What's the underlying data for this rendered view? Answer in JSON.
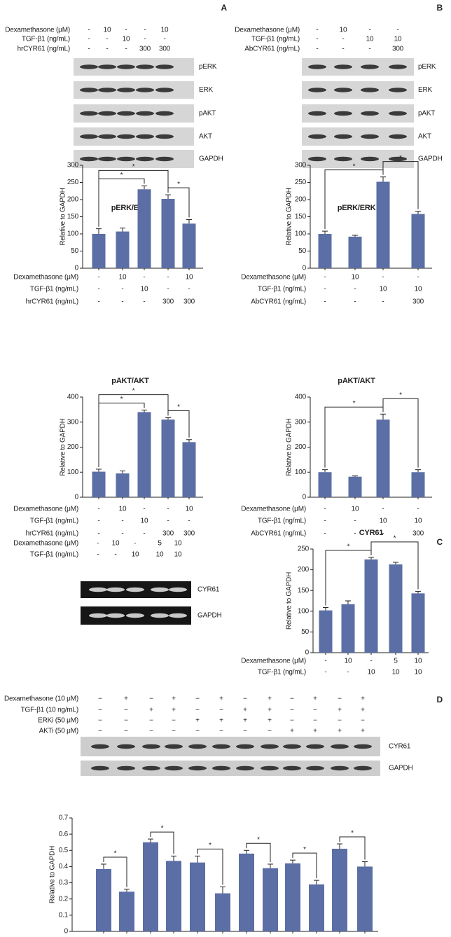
{
  "panels": [
    "A",
    "B",
    "C",
    "D"
  ],
  "blots": [
    {
      "treatments": [
        {
          "label": "Dexamethasone (μM)",
          "cells": [
            "-",
            "10",
            "-",
            "-",
            "10"
          ]
        },
        {
          "label": "TGF-β1 (ng/mL)",
          "cells": [
            "-",
            "-",
            "10",
            "-",
            "-"
          ]
        },
        {
          "label": "hrCYR61 (ng/mL)",
          "cells": [
            "-",
            "-",
            "-",
            "300",
            "300"
          ]
        }
      ],
      "bands": [
        "pERK",
        "ERK",
        "pAKT",
        "AKT",
        "GAPDH"
      ]
    },
    {
      "treatments": [
        {
          "label": "Dexamethasone (μM)",
          "cells": [
            "-",
            "10",
            "-",
            "-"
          ]
        },
        {
          "label": "TGF-β1 (ng/mL)",
          "cells": [
            "-",
            "-",
            "10",
            "10"
          ]
        },
        {
          "label": "AbCYR61 (ng/mL)",
          "cells": [
            "-",
            "-",
            "-",
            "300"
          ]
        }
      ],
      "bands": [
        "pERK",
        "ERK",
        "pAKT",
        "AKT",
        "GAPDH"
      ]
    },
    {
      "treatments": [
        {
          "label": "Dexamethasone (μM)",
          "cells": [
            "-",
            "10",
            "-",
            "5",
            "10"
          ]
        },
        {
          "label": "TGF-β1 (ng/mL)",
          "cells": [
            "-",
            "-",
            "10",
            "10",
            "10"
          ]
        }
      ],
      "bands": [
        "CYR61",
        "GAPDH"
      ]
    },
    {
      "treatments": [
        {
          "label": "Dexamethasone (10 μM)",
          "cells": [
            "−",
            "+",
            "−",
            "+",
            "−",
            "+",
            "−",
            "+",
            "−",
            "+",
            "−",
            "+"
          ]
        },
        {
          "label": "TGF-β1 (10 ng/mL)",
          "cells": [
            "−",
            "−",
            "+",
            "+",
            "−",
            "−",
            "+",
            "+",
            "−",
            "−",
            "+",
            "+"
          ]
        },
        {
          "label": "ERKi (50 μM)",
          "cells": [
            "−",
            "−",
            "−",
            "−",
            "+",
            "+",
            "+",
            "+",
            "−",
            "−",
            "−",
            "−"
          ]
        },
        {
          "label": "AKTi (50 μM)",
          "cells": [
            "−",
            "−",
            "−",
            "−",
            "−",
            "−",
            "−",
            "−",
            "+",
            "+",
            "+",
            "+"
          ]
        }
      ],
      "bands": [
        "CYR61",
        "GAPDH"
      ]
    }
  ],
  "chart_data": [
    {
      "type": "bar",
      "title": "pERK/ERK",
      "y_label": "Relative to GAPDH",
      "color": "#5b6ea5",
      "values": [
        100,
        107,
        230,
        202,
        130
      ],
      "errors": [
        15,
        10,
        10,
        12,
        12
      ],
      "ylim": [
        0,
        300
      ],
      "yticks": [
        0,
        50,
        100,
        150,
        200,
        250,
        300
      ],
      "significance": [
        {
          "from": 0,
          "to": 2,
          "label": "*"
        },
        {
          "from": 0,
          "to": 3,
          "label": "*"
        },
        {
          "from": 3,
          "to": 4,
          "label": "*"
        }
      ],
      "treatments": [
        {
          "label": "Dexamethasone (μM)",
          "cells": [
            "-",
            "10",
            "-",
            "-",
            "10"
          ]
        },
        {
          "label": "TGF-β1 (ng/mL)",
          "cells": [
            "-",
            "-",
            "10",
            "-",
            "-"
          ]
        },
        {
          "label": "hrCYR61 (ng/mL)",
          "cells": [
            "-",
            "-",
            "-",
            "300",
            "300"
          ]
        }
      ]
    },
    {
      "type": "bar",
      "title": "pERK/ERK",
      "y_label": "Relative to GAPDH",
      "color": "#5b6ea5",
      "values": [
        100,
        92,
        252,
        158
      ],
      "errors": [
        8,
        4,
        14,
        8
      ],
      "ylim": [
        0,
        300
      ],
      "yticks": [
        0,
        50,
        100,
        150,
        200,
        250,
        300
      ],
      "significance": [
        {
          "from": 0,
          "to": 2,
          "label": "*"
        },
        {
          "from": 2,
          "to": 3,
          "label": "*"
        }
      ],
      "treatments": [
        {
          "label": "Dexamethasone (μM)",
          "cells": [
            "-",
            "10",
            "-",
            "-"
          ]
        },
        {
          "label": "TGF-β1 (ng/mL)",
          "cells": [
            "-",
            "-",
            "10",
            "10"
          ]
        },
        {
          "label": "AbCYR61 (ng/mL)",
          "cells": [
            "-",
            "-",
            "-",
            "300"
          ]
        }
      ]
    },
    {
      "type": "bar",
      "title": "pAKT/AKT",
      "y_label": "Relative to GAPDH",
      "color": "#5b6ea5",
      "values": [
        102,
        95,
        340,
        310,
        220
      ],
      "errors": [
        10,
        10,
        8,
        8,
        10
      ],
      "ylim": [
        0,
        400
      ],
      "yticks": [
        0,
        100,
        200,
        300,
        400
      ],
      "significance": [
        {
          "from": 0,
          "to": 2,
          "label": "*"
        },
        {
          "from": 0,
          "to": 3,
          "label": "*"
        },
        {
          "from": 3,
          "to": 4,
          "label": "*"
        }
      ],
      "treatments": [
        {
          "label": "Dexamethasone (μM)",
          "cells": [
            "-",
            "10",
            "-",
            "-",
            "10"
          ]
        },
        {
          "label": "TGF-β1 (ng/mL)",
          "cells": [
            "-",
            "-",
            "10",
            "-",
            "-"
          ]
        },
        {
          "label": "hrCYR61 (ng/mL)",
          "cells": [
            "-",
            "-",
            "-",
            "300",
            "300"
          ]
        }
      ]
    },
    {
      "type": "bar",
      "title": "pAKT/AKT",
      "y_label": "Relative to GAPDH",
      "color": "#5b6ea5",
      "values": [
        100,
        82,
        310,
        100
      ],
      "errors": [
        10,
        3,
        22,
        10
      ],
      "ylim": [
        0,
        400
      ],
      "yticks": [
        0,
        100,
        200,
        300,
        400
      ],
      "significance": [
        {
          "from": 0,
          "to": 2,
          "label": "*"
        },
        {
          "from": 2,
          "to": 3,
          "label": "*"
        }
      ],
      "treatments": [
        {
          "label": "Dexamethasone (μM)",
          "cells": [
            "-",
            "10",
            "-",
            "-"
          ]
        },
        {
          "label": "TGF-β1 (ng/mL)",
          "cells": [
            "-",
            "-",
            "10",
            "10"
          ]
        },
        {
          "label": "AbCYR61 (ng/mL)",
          "cells": [
            "-",
            "-",
            "-",
            "300"
          ]
        }
      ]
    },
    {
      "type": "bar",
      "title": "CYR61",
      "y_label": "Relative to GAPDH",
      "color": "#5b6ea5",
      "values": [
        102,
        117,
        225,
        213,
        143
      ],
      "errors": [
        7,
        8,
        5,
        5,
        5
      ],
      "ylim": [
        0,
        250
      ],
      "yticks": [
        0,
        50,
        100,
        150,
        200,
        250
      ],
      "significance": [
        {
          "from": 0,
          "to": 2,
          "label": "*"
        },
        {
          "from": 2,
          "to": 4,
          "label": "*"
        }
      ],
      "treatments": [
        {
          "label": "Dexamethasone (μM)",
          "cells": [
            "-",
            "10",
            "-",
            "5",
            "10"
          ]
        },
        {
          "label": "TGF-β1 (ng/mL)",
          "cells": [
            "-",
            "-",
            "10",
            "10",
            "10"
          ]
        }
      ]
    },
    {
      "type": "bar",
      "y_label": "Relative to GAPDH",
      "color": "#5b6ea5",
      "values": [
        0.385,
        0.245,
        0.55,
        0.435,
        0.425,
        0.235,
        0.48,
        0.39,
        0.42,
        0.29,
        0.51,
        0.4
      ],
      "errors": [
        0.03,
        0.015,
        0.02,
        0.03,
        0.04,
        0.04,
        0.02,
        0.025,
        0.02,
        0.025,
        0.03,
        0.03
      ],
      "ylim": [
        0,
        0.7
      ],
      "yticks": [
        0,
        0.1,
        0.2,
        0.3,
        0.4,
        0.5,
        0.6,
        0.7
      ],
      "significance": [
        {
          "from": 0,
          "to": 1,
          "label": "*"
        },
        {
          "from": 2,
          "to": 3,
          "label": "*"
        },
        {
          "from": 4,
          "to": 5,
          "label": "*"
        },
        {
          "from": 6,
          "to": 7,
          "label": "*"
        },
        {
          "from": 8,
          "to": 9,
          "label": "*"
        },
        {
          "from": 10,
          "to": 11,
          "label": "*"
        }
      ]
    }
  ]
}
